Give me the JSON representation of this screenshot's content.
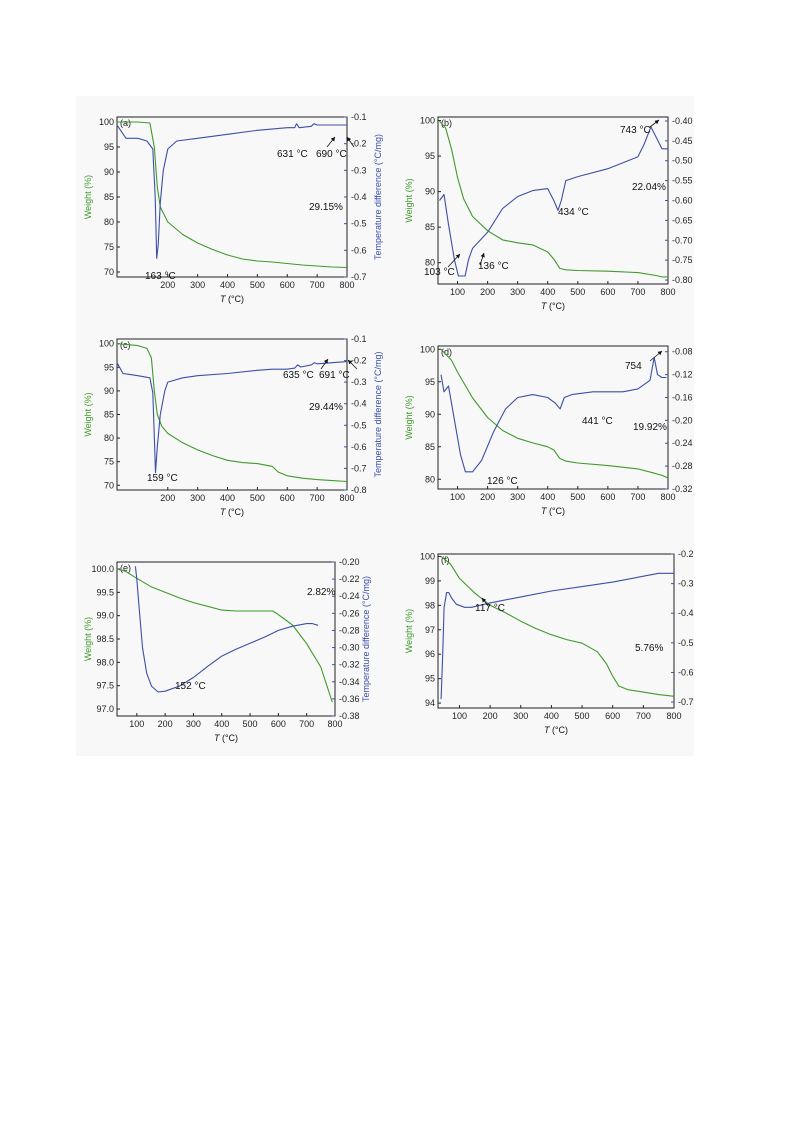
{
  "colors": {
    "weight": "#3f9a2a",
    "dta": "#3b4fa8",
    "frame": "#222222",
    "bg": "#f8f8f8"
  },
  "chart_data": [
    {
      "type": "line",
      "panel": "(a)",
      "xlabel": "T (°C)",
      "ylabel": "Weight (%)",
      "ylabel2": "Temperature difference (°C/mg)",
      "xlim": [
        30,
        800
      ],
      "ylim": [
        69,
        101
      ],
      "y2lim": [
        -0.7,
        -0.1
      ],
      "xticks": [
        "200",
        "300",
        "400",
        "500",
        "600",
        "700",
        "800"
      ],
      "yticks": [
        "70",
        "75",
        "80",
        "85",
        "90",
        "95",
        "100"
      ],
      "y2ticks": [
        "-0.1",
        "-0.2",
        "-0.3",
        "-0.4",
        "-0.5",
        "-0.6",
        "-0.7"
      ],
      "series": [
        {
          "axis": "left",
          "x": [
            30,
            100,
            140,
            155,
            165,
            175,
            200,
            250,
            300,
            350,
            400,
            450,
            500,
            550,
            600,
            650,
            700,
            750,
            800
          ],
          "values": [
            100,
            100,
            99.8,
            95,
            87,
            83,
            80,
            77.5,
            75.8,
            74.5,
            73.4,
            72.6,
            72.2,
            72,
            71.7,
            71.4,
            71.2,
            71,
            70.9
          ]
        },
        {
          "axis": "right",
          "x": [
            30,
            60,
            100,
            130,
            150,
            158,
            163,
            168,
            175,
            185,
            200,
            230,
            300,
            400,
            500,
            600,
            625,
            631,
            640,
            680,
            690,
            700,
            750,
            800
          ],
          "values": [
            -0.13,
            -0.18,
            -0.18,
            -0.19,
            -0.22,
            -0.4,
            -0.63,
            -0.58,
            -0.42,
            -0.3,
            -0.22,
            -0.19,
            -0.18,
            -0.165,
            -0.15,
            -0.14,
            -0.14,
            -0.125,
            -0.14,
            -0.135,
            -0.125,
            -0.13,
            -0.13,
            -0.13
          ]
        }
      ],
      "annotations": [
        {
          "text": "163 °C",
          "x": 163,
          "axis": "right",
          "y": -0.65
        },
        {
          "text": "631 °C",
          "x": 631,
          "axis": "right",
          "y": -0.125
        },
        {
          "text": "690 °C",
          "x": 690,
          "axis": "right",
          "y": -0.125
        },
        {
          "text": "29.15%"
        }
      ]
    },
    {
      "type": "line",
      "panel": "(b)",
      "xlabel": "T (°C)",
      "ylabel": "Weight (%)",
      "ylabel2": "Temperature difference (°C/mg)",
      "xlim": [
        35,
        800
      ],
      "ylim": [
        77,
        100.5
      ],
      "y2lim": [
        -0.81,
        -0.39
      ],
      "xticks": [
        "100",
        "200",
        "300",
        "400",
        "500",
        "600",
        "700",
        "800"
      ],
      "yticks": [
        "80",
        "85",
        "90",
        "95",
        "100"
      ],
      "y2ticks": [
        "-0.40",
        "-0.45",
        "-0.50",
        "-0.55",
        "-0.60",
        "-0.65",
        "-0.70",
        "-0.75",
        "-0.80"
      ],
      "series": [
        {
          "axis": "left",
          "x": [
            40,
            60,
            80,
            100,
            120,
            150,
            200,
            250,
            300,
            350,
            400,
            420,
            440,
            460,
            500,
            600,
            700,
            760,
            780,
            800
          ],
          "values": [
            99.9,
            99,
            96,
            92,
            89,
            86.5,
            84.5,
            83.2,
            82.8,
            82.5,
            81.5,
            80.5,
            79.2,
            79,
            78.9,
            78.8,
            78.6,
            78.2,
            78,
            78
          ]
        },
        {
          "axis": "right",
          "x": [
            40,
            55,
            70,
            90,
            103,
            115,
            125,
            136,
            150,
            200,
            250,
            300,
            350,
            400,
            420,
            434,
            445,
            460,
            500,
            600,
            700,
            720,
            743,
            760,
            780,
            800
          ],
          "values": [
            -0.6,
            -0.585,
            -0.66,
            -0.75,
            -0.79,
            -0.79,
            -0.79,
            -0.75,
            -0.72,
            -0.68,
            -0.62,
            -0.59,
            -0.575,
            -0.57,
            -0.6,
            -0.625,
            -0.6,
            -0.55,
            -0.54,
            -0.52,
            -0.49,
            -0.46,
            -0.415,
            -0.44,
            -0.47,
            -0.47
          ]
        }
      ],
      "annotations": [
        {
          "text": "103 °C",
          "x": 103,
          "axis": "right",
          "y": -0.79
        },
        {
          "text": "136 °C",
          "x": 136,
          "axis": "right",
          "y": -0.75
        },
        {
          "text": "434 °C",
          "x": 434,
          "axis": "right",
          "y": -0.625
        },
        {
          "text": "743 °C",
          "x": 743,
          "axis": "right",
          "y": -0.415
        },
        {
          "text": "22.04%"
        }
      ]
    },
    {
      "type": "line",
      "panel": "(c)",
      "xlabel": "T (°C)",
      "ylabel": "Weight (%)",
      "ylabel2": "Temperature difference (°C/mg)",
      "xlim": [
        30,
        800
      ],
      "ylim": [
        69,
        101
      ],
      "y2lim": [
        -0.8,
        -0.1
      ],
      "xticks": [
        "200",
        "300",
        "400",
        "500",
        "600",
        "700",
        "800"
      ],
      "yticks": [
        "70",
        "75",
        "80",
        "85",
        "90",
        "95",
        "100"
      ],
      "y2ticks": [
        "-0.1",
        "-0.2",
        "-0.3",
        "-0.4",
        "-0.5",
        "-0.6",
        "-0.7",
        "-0.8"
      ],
      "series": [
        {
          "axis": "left",
          "x": [
            30,
            100,
            130,
            145,
            155,
            165,
            180,
            200,
            250,
            300,
            350,
            400,
            450,
            500,
            550,
            570,
            600,
            650,
            700,
            750,
            800
          ],
          "values": [
            100,
            99.6,
            99,
            97,
            90,
            85,
            82.5,
            81,
            79,
            77.5,
            76.3,
            75.3,
            74.8,
            74.6,
            74,
            72.8,
            72,
            71.5,
            71.2,
            71,
            70.8
          ]
        },
        {
          "axis": "right",
          "x": [
            30,
            50,
            100,
            140,
            150,
            155,
            159,
            165,
            175,
            190,
            200,
            250,
            300,
            400,
            500,
            550,
            600,
            625,
            635,
            645,
            680,
            691,
            700,
            750,
            800
          ],
          "values": [
            -0.21,
            -0.26,
            -0.27,
            -0.28,
            -0.35,
            -0.55,
            -0.72,
            -0.6,
            -0.45,
            -0.34,
            -0.3,
            -0.28,
            -0.27,
            -0.26,
            -0.245,
            -0.24,
            -0.24,
            -0.235,
            -0.22,
            -0.23,
            -0.22,
            -0.21,
            -0.215,
            -0.21,
            -0.205
          ]
        }
      ],
      "annotations": [
        {
          "text": "159 °C",
          "x": 159,
          "axis": "right",
          "y": -0.72
        },
        {
          "text": "635 °C",
          "x": 635,
          "axis": "right",
          "y": -0.22
        },
        {
          "text": "691 °C",
          "x": 691,
          "axis": "right",
          "y": -0.21
        },
        {
          "text": "29.44%"
        }
      ]
    },
    {
      "type": "line",
      "panel": "(d)",
      "xlabel": "T (°C)",
      "ylabel": "Weight (%)",
      "ylabel2": "Temperature difference (°C/mg)",
      "xlim": [
        35,
        800
      ],
      "ylim": [
        78.5,
        100.5
      ],
      "y2lim": [
        -0.32,
        -0.07
      ],
      "xticks": [
        "100",
        "200",
        "300",
        "400",
        "500",
        "600",
        "700",
        "800"
      ],
      "yticks": [
        "80",
        "85",
        "90",
        "95",
        "100"
      ],
      "y2ticks": [
        "-0.08",
        "-0.12",
        "-0.16",
        "-0.20",
        "-0.24",
        "-0.28",
        "-0.32"
      ],
      "series": [
        {
          "axis": "left",
          "x": [
            45,
            80,
            100,
            150,
            200,
            250,
            300,
            350,
            400,
            420,
            440,
            460,
            500,
            600,
            700,
            750,
            780,
            800
          ],
          "values": [
            100,
            98.3,
            96.5,
            92.5,
            89.5,
            87.5,
            86.3,
            85.6,
            85,
            84.5,
            83.2,
            82.8,
            82.5,
            82.1,
            81.6,
            81,
            80.6,
            80.2
          ]
        },
        {
          "axis": "right",
          "x": [
            45,
            55,
            70,
            90,
            110,
            126,
            150,
            180,
            220,
            260,
            300,
            350,
            400,
            425,
            441,
            455,
            480,
            550,
            650,
            700,
            740,
            754,
            765,
            780,
            795
          ],
          "values": [
            -0.12,
            -0.15,
            -0.14,
            -0.2,
            -0.26,
            -0.29,
            -0.29,
            -0.27,
            -0.22,
            -0.18,
            -0.16,
            -0.155,
            -0.16,
            -0.17,
            -0.18,
            -0.16,
            -0.155,
            -0.15,
            -0.15,
            -0.145,
            -0.13,
            -0.09,
            -0.12,
            -0.125,
            -0.125
          ]
        }
      ],
      "annotations": [
        {
          "text": "126 °C",
          "x": 126,
          "axis": "right",
          "y": -0.29
        },
        {
          "text": "441 °C",
          "x": 441,
          "axis": "right",
          "y": -0.18
        },
        {
          "text": "754",
          "x": 754,
          "axis": "right",
          "y": -0.09
        },
        {
          "text": "19.92%"
        }
      ]
    },
    {
      "type": "line",
      "panel": "(e)",
      "xlabel": "T (°C)",
      "ylabel": "Weight (%)",
      "ylabel2": "Temperature difference (°C/mg)",
      "xlim": [
        30,
        800
      ],
      "ylim": [
        96.85,
        100.15
      ],
      "y2lim": [
        -0.38,
        -0.2
      ],
      "xticks": [
        "100",
        "200",
        "300",
        "400",
        "500",
        "600",
        "700",
        "800"
      ],
      "yticks": [
        "97.0",
        "97.5",
        "98.0",
        "98.5",
        "99.0",
        "99.5",
        "100.0"
      ],
      "y2ticks": [
        "-0.20",
        "-0.22",
        "-0.24",
        "-0.26",
        "-0.28",
        "-0.30",
        "-0.32",
        "-0.34",
        "-0.36",
        "-0.38"
      ],
      "series": [
        {
          "axis": "left",
          "x": [
            30,
            60,
            100,
            150,
            200,
            250,
            300,
            350,
            400,
            450,
            500,
            550,
            580,
            600,
            650,
            700,
            750,
            790
          ],
          "values": [
            100,
            99.95,
            99.8,
            99.62,
            99.5,
            99.38,
            99.28,
            99.2,
            99.12,
            99.1,
            99.1,
            99.1,
            99.1,
            99.02,
            98.8,
            98.4,
            97.9,
            97.15
          ]
        },
        {
          "axis": "right",
          "x": [
            95,
            100,
            110,
            120,
            135,
            152,
            175,
            200,
            250,
            300,
            350,
            400,
            450,
            500,
            550,
            600,
            650,
            700,
            720,
            740
          ],
          "values": [
            -0.205,
            -0.22,
            -0.26,
            -0.3,
            -0.33,
            -0.345,
            -0.352,
            -0.351,
            -0.345,
            -0.335,
            -0.322,
            -0.31,
            -0.302,
            -0.295,
            -0.288,
            -0.28,
            -0.275,
            -0.272,
            -0.272,
            -0.274
          ]
        }
      ],
      "annotations": [
        {
          "text": "152 °C",
          "x": 152,
          "axis": "right",
          "y": -0.345
        },
        {
          "text": "2.82%"
        }
      ]
    },
    {
      "type": "line",
      "panel": "(f)",
      "xlabel": "T (°C)",
      "ylabel": "Weight (%)",
      "ylabel2": "Temperature difference (°C/mg)",
      "xlim": [
        30,
        800
      ],
      "ylim": [
        93.8,
        100.1
      ],
      "y2lim": [
        -0.72,
        -0.2
      ],
      "xticks": [
        "100",
        "200",
        "300",
        "400",
        "500",
        "600",
        "700",
        "800"
      ],
      "yticks": [
        "94",
        "95",
        "96",
        "97",
        "98",
        "99",
        "100"
      ],
      "y2ticks": [
        "-0.2",
        "-0.3",
        "-0.4",
        "-0.5",
        "-0.6",
        "-0.7"
      ],
      "series": [
        {
          "axis": "left",
          "x": [
            40,
            70,
            100,
            150,
            200,
            250,
            300,
            350,
            400,
            450,
            500,
            550,
            580,
            600,
            620,
            650,
            700,
            750,
            800
          ],
          "values": [
            100,
            99.7,
            99.1,
            98.5,
            98,
            97.7,
            97.35,
            97.05,
            96.8,
            96.6,
            96.45,
            96.1,
            95.6,
            95.1,
            94.7,
            94.55,
            94.45,
            94.35,
            94.28
          ]
        },
        {
          "axis": "right",
          "x": [
            40,
            45,
            50,
            58,
            65,
            75,
            90,
            117,
            140,
            200,
            300,
            400,
            500,
            600,
            650,
            700,
            750,
            800
          ],
          "values": [
            -0.69,
            -0.55,
            -0.38,
            -0.33,
            -0.33,
            -0.35,
            -0.37,
            -0.38,
            -0.38,
            -0.365,
            -0.345,
            -0.325,
            -0.31,
            -0.295,
            -0.285,
            -0.275,
            -0.265,
            -0.265
          ]
        }
      ],
      "annotations": [
        {
          "text": "117 °C",
          "x": 117,
          "axis": "right",
          "y": -0.38
        },
        {
          "text": "5.76%"
        }
      ]
    }
  ]
}
